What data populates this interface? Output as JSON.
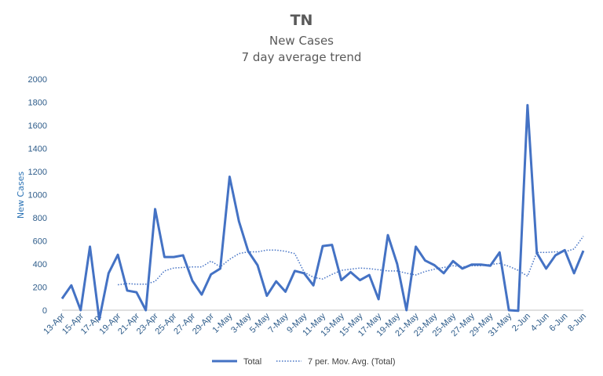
{
  "chart_data": {
    "type": "line",
    "title": "TN",
    "subtitle": "New Cases",
    "subtitle2": "7 day average trend",
    "xlabel": "",
    "ylabel": "New Cases",
    "ylim": [
      0,
      2000
    ],
    "yticks": [
      0,
      200,
      400,
      600,
      800,
      1000,
      1200,
      1400,
      1600,
      1800,
      2000
    ],
    "grid": false,
    "legend_position": "bottom",
    "categories": [
      "13-Apr",
      "14-Apr",
      "15-Apr",
      "16-Apr",
      "17-Apr",
      "18-Apr",
      "19-Apr",
      "20-Apr",
      "21-Apr",
      "22-Apr",
      "23-Apr",
      "24-Apr",
      "25-Apr",
      "26-Apr",
      "27-Apr",
      "28-Apr",
      "29-Apr",
      "30-Apr",
      "1-May",
      "2-May",
      "3-May",
      "4-May",
      "5-May",
      "6-May",
      "7-May",
      "8-May",
      "9-May",
      "10-May",
      "11-May",
      "12-May",
      "13-May",
      "14-May",
      "15-May",
      "16-May",
      "17-May",
      "18-May",
      "19-May",
      "20-May",
      "21-May",
      "22-May",
      "23-May",
      "24-May",
      "25-May",
      "26-May",
      "27-May",
      "28-May",
      "29-May",
      "30-May",
      "31-May",
      "1-Jun",
      "2-Jun",
      "3-Jun",
      "4-Jun",
      "5-Jun",
      "6-Jun",
      "7-Jun",
      "8-Jun"
    ],
    "tick_labels": [
      "13-Apr",
      "15-Apr",
      "17-Apr",
      "19-Apr",
      "21-Apr",
      "23-Apr",
      "25-Apr",
      "27-Apr",
      "29-Apr",
      "1-May",
      "3-May",
      "5-May",
      "7-May",
      "9-May",
      "11-May",
      "13-May",
      "15-May",
      "17-May",
      "19-May",
      "21-May",
      "23-May",
      "25-May",
      "27-May",
      "29-May",
      "31-May",
      "2-Jun",
      "4-Jun",
      "6-Jun",
      "8-Jun"
    ],
    "series": [
      {
        "name": "Total",
        "style": "solid",
        "color": "#4472c4",
        "values": [
          100,
          215,
          0,
          550,
          -80,
          320,
          480,
          170,
          155,
          0,
          875,
          460,
          460,
          475,
          255,
          135,
          310,
          360,
          1155,
          770,
          510,
          390,
          125,
          250,
          160,
          340,
          320,
          215,
          555,
          565,
          260,
          330,
          260,
          305,
          95,
          650,
          400,
          0,
          550,
          430,
          390,
          320,
          425,
          360,
          395,
          395,
          385,
          500,
          0,
          -5,
          1775,
          495,
          360,
          475,
          520,
          320,
          515
        ]
      },
      {
        "name": "7 per. Mov. Avg. (Total)",
        "style": "dotted",
        "color": "#4472c4",
        "values": [
          null,
          null,
          null,
          null,
          null,
          null,
          220,
          230,
          225,
          225,
          250,
          340,
          365,
          370,
          375,
          375,
          425,
          375,
          440,
          490,
          505,
          505,
          520,
          520,
          510,
          490,
          330,
          285,
          270,
          310,
          345,
          355,
          365,
          360,
          350,
          340,
          340,
          320,
          305,
          335,
          355,
          370,
          385,
          375,
          385,
          385,
          395,
          405,
          380,
          345,
          295,
          500,
          500,
          505,
          505,
          530,
          640
        ]
      }
    ]
  }
}
